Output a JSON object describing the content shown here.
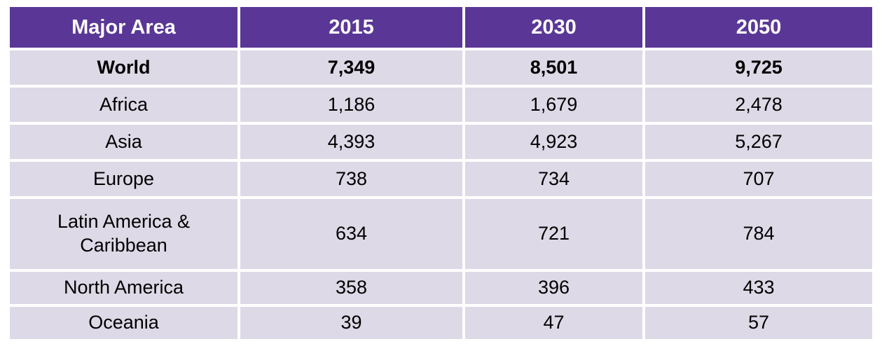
{
  "colors": {
    "header_bg": "#5a3796",
    "header_text": "#ffffff",
    "row_bg": "#ddd9e6",
    "body_text": "#000000"
  },
  "table": {
    "header": {
      "cells": [
        "Major Area",
        "2015",
        "2030",
        "2050"
      ]
    },
    "rows": [
      {
        "cells": [
          "World",
          "7,349",
          "8,501",
          "9,725"
        ]
      },
      {
        "cells": [
          "Africa",
          "1,186",
          "1,679",
          "2,478"
        ]
      },
      {
        "cells": [
          "Asia",
          "4,393",
          "4,923",
          "5,267"
        ]
      },
      {
        "cells": [
          "Europe",
          "738",
          "734",
          "707"
        ]
      },
      {
        "cells": [
          "Latin America & Caribbean",
          "634",
          "721",
          "784"
        ]
      },
      {
        "cells": [
          "North America",
          "358",
          "396",
          "433"
        ]
      },
      {
        "cells": [
          "Oceania",
          "39",
          "47",
          "57"
        ]
      }
    ]
  },
  "chart_data": {
    "type": "table",
    "title": "",
    "columns": [
      "Major Area",
      "2015",
      "2030",
      "2050"
    ],
    "rows": [
      [
        "World",
        7349,
        8501,
        9725
      ],
      [
        "Africa",
        1186,
        1679,
        2478
      ],
      [
        "Asia",
        4393,
        4923,
        5267
      ],
      [
        "Europe",
        738,
        734,
        707
      ],
      [
        "Latin America & Caribbean",
        634,
        721,
        784
      ],
      [
        "North America",
        358,
        396,
        433
      ],
      [
        "Oceania",
        39,
        47,
        57
      ]
    ]
  }
}
